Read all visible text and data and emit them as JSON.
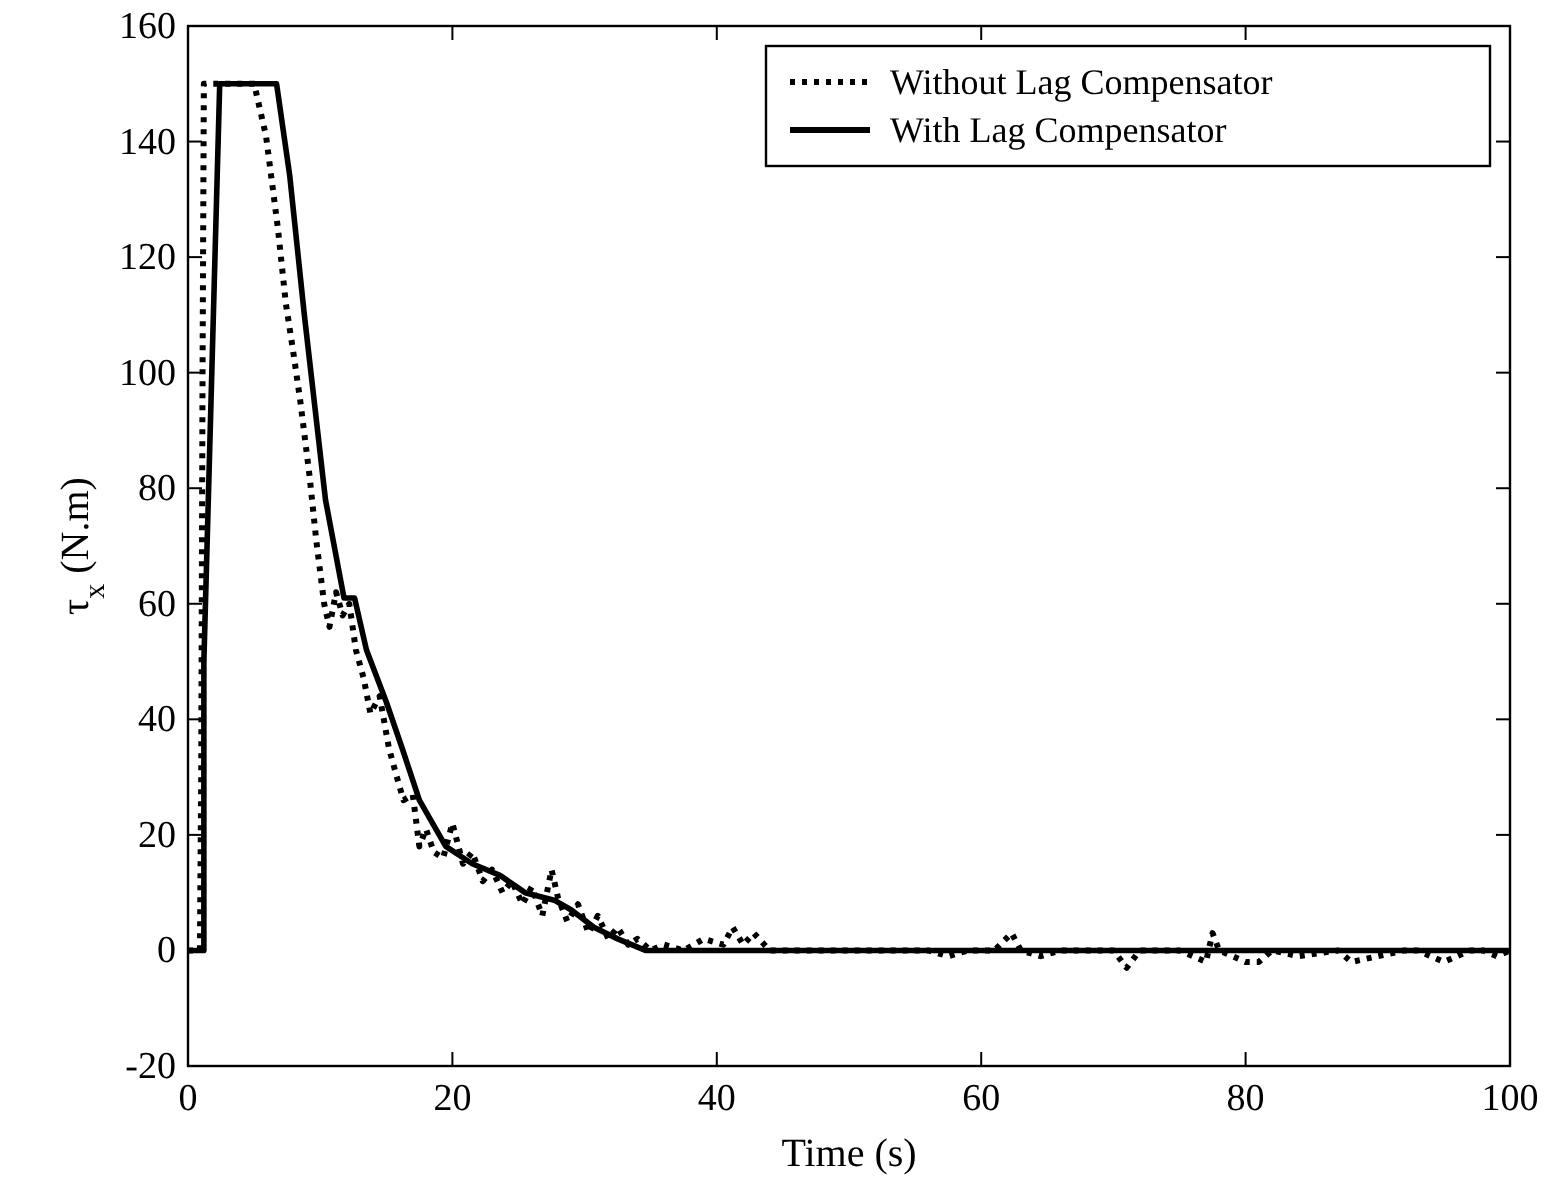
{
  "chart_data": {
    "type": "line",
    "xlabel": "Time (s)",
    "ylabel": "τ$_{x}$ (N.m)",
    "xlim": [
      0,
      100
    ],
    "ylim": [
      -20,
      160
    ],
    "xticks": [
      0,
      20,
      40,
      60,
      80,
      100
    ],
    "yticks": [
      -20,
      0,
      20,
      40,
      60,
      80,
      100,
      120,
      140,
      160
    ],
    "grid": false,
    "legend": "top right",
    "series": [
      {
        "name": "Without Lag Compensator",
        "color": "#000000",
        "line_style": "dotted",
        "x": [
          0,
          0.9,
          1.0,
          1.1,
          1.2,
          3.5,
          5.0,
          5.9,
          6.8,
          7.4,
          8.0,
          8.5,
          9.2,
          9.7,
          10.3,
          10.7,
          11.2,
          11.7,
          12.2,
          12.7,
          13.3,
          13.8,
          14.5,
          15.2,
          15.8,
          16.3,
          17.0,
          17.5,
          18.0,
          18.6,
          19.3,
          20.0,
          20.8,
          21.5,
          22.3,
          23.0,
          23.8,
          24.5,
          25.3,
          26.0,
          26.8,
          27.5,
          28.0,
          28.7,
          29.5,
          30.3,
          31.0,
          31.8,
          32.5,
          33.3,
          34.0,
          35.0,
          36.0,
          37.5,
          39.0,
          40.5,
          41.2,
          42.0,
          42.8,
          44.0,
          46.0,
          50,
          56,
          57.5,
          59,
          61,
          62.3,
          63,
          64.5,
          66,
          70,
          71,
          72,
          75,
          76,
          77,
          77.5,
          78,
          79,
          80,
          81,
          82,
          84,
          87,
          88,
          90,
          92,
          93,
          95,
          97,
          98,
          99,
          100
        ],
        "values": [
          0,
          0,
          30,
          100,
          150,
          150,
          150,
          141,
          125,
          112,
          103,
          95,
          82,
          71,
          60,
          56,
          62,
          58,
          60,
          52,
          47,
          41,
          44,
          35,
          30,
          26,
          27,
          18,
          21,
          17,
          16,
          22,
          15,
          17,
          12,
          14,
          10,
          12,
          8,
          11,
          6,
          14,
          9,
          5,
          8,
          3,
          6,
          2,
          4,
          1,
          2,
          0,
          1,
          0,
          2,
          1,
          4,
          1,
          3,
          0,
          0,
          0,
          0,
          -1,
          0,
          0,
          3,
          0,
          -1,
          0,
          0,
          -3,
          0,
          0,
          -1,
          -2,
          3,
          0,
          -1,
          -2,
          -2,
          0,
          -1,
          0,
          -2,
          -1,
          0,
          0,
          -2,
          0,
          0,
          -1,
          0
        ]
      },
      {
        "name": "With Lag Compensator",
        "color": "#000000",
        "line_style": "solid",
        "x": [
          0,
          1.2,
          1.2,
          2.4,
          6.7,
          7.7,
          8.8,
          10.4,
          11.8,
          12.6,
          13.5,
          15.0,
          16.2,
          17.5,
          19.5,
          21.5,
          23.6,
          25.5,
          27.7,
          29.0,
          30.7,
          32.5,
          34.6,
          40,
          60,
          80,
          100
        ],
        "values": [
          0,
          0,
          50,
          150,
          150,
          134,
          110,
          78,
          61,
          61,
          52,
          43,
          35,
          26,
          18,
          15,
          13,
          10,
          8.7,
          7,
          4,
          2,
          0,
          0,
          0,
          0,
          0
        ]
      }
    ]
  }
}
